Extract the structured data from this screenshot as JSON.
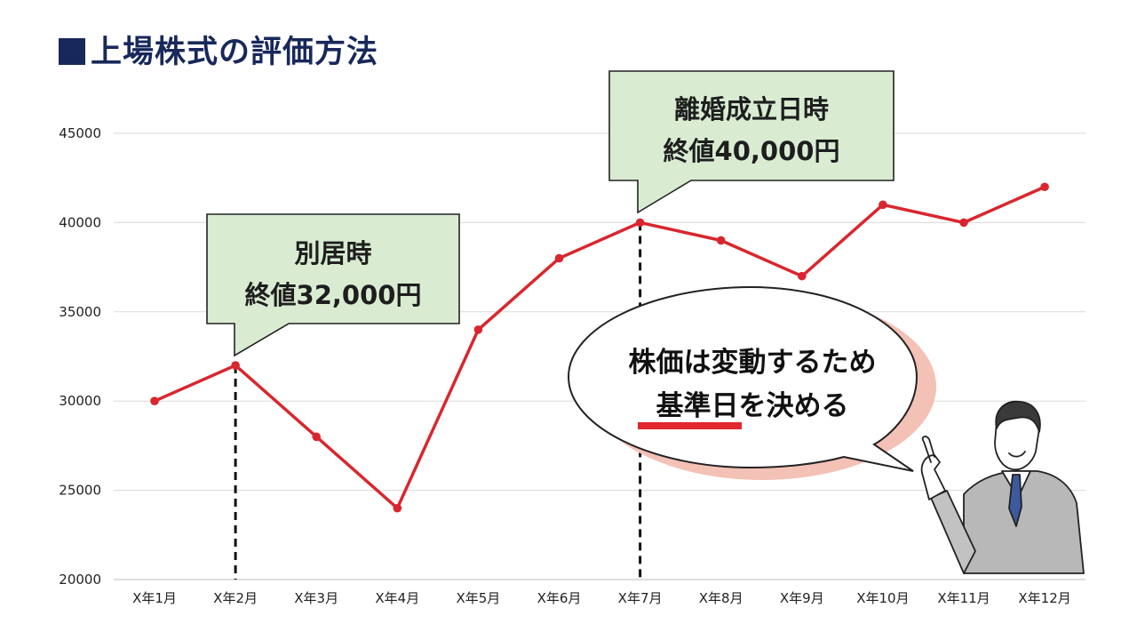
{
  "header": {
    "title": "上場株式の評価方法"
  },
  "chart_data": {
    "type": "line",
    "categories": [
      "X年1月",
      "X年2月",
      "X年3月",
      "X年4月",
      "X年5月",
      "X年6月",
      "X年7月",
      "X年8月",
      "X年9月",
      "X年10月",
      "X年11月",
      "X年12月"
    ],
    "series": [
      {
        "values": [
          30000,
          32000,
          28000,
          24000,
          34000,
          38000,
          40000,
          39000,
          37000,
          41000,
          40000,
          42000
        ]
      }
    ],
    "ylim": [
      20000,
      45000
    ],
    "yticks": [
      "20000",
      "25000",
      "30000",
      "35000",
      "40000",
      "45000"
    ],
    "grid": true,
    "line_color": "#d9262e",
    "annotations": [
      {
        "category_index": 1,
        "lines": [
          "別居時",
          "終値32,000円"
        ]
      },
      {
        "category_index": 6,
        "lines": [
          "離婚成立日時",
          "終値40,000円"
        ]
      }
    ]
  },
  "speech_bubble": {
    "line1": "株価は変動するため",
    "line2": "基準日を決める",
    "underline_color": "#e0282e"
  },
  "colors": {
    "title": "#17285a",
    "callout_fill": "#d9ecd2",
    "bubble_shadow": "#f3c1b5"
  }
}
